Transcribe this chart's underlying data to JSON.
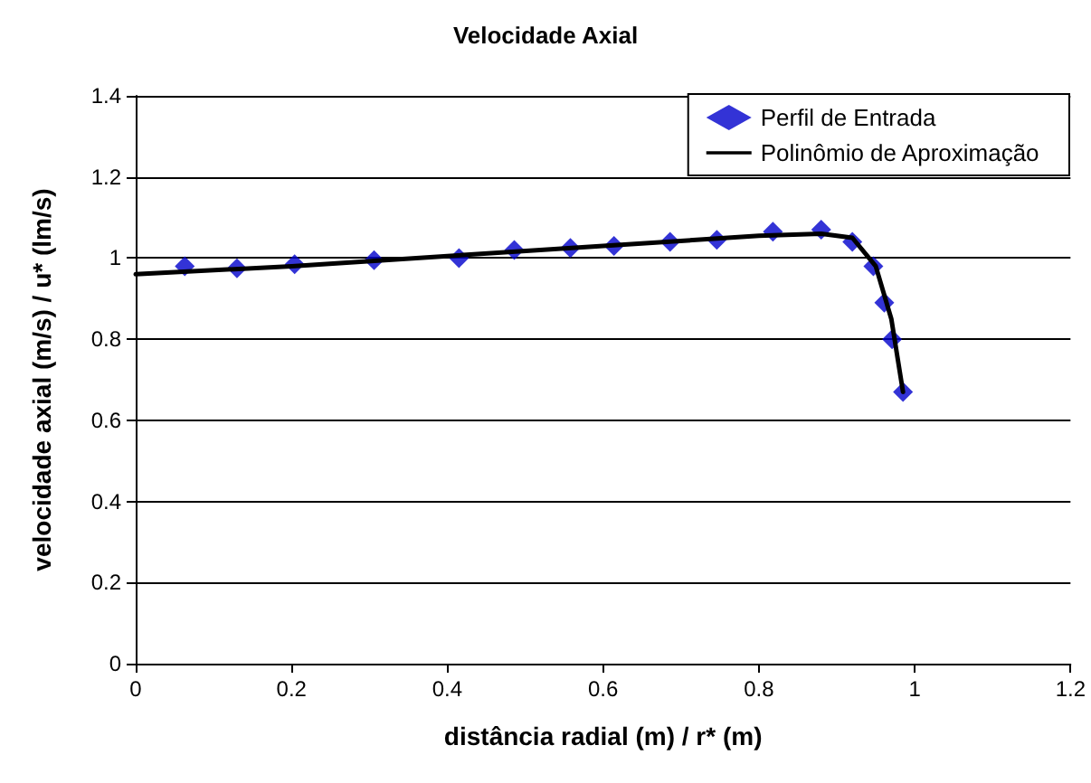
{
  "chart_data": {
    "type": "scatter",
    "title": "Velocidade Axial",
    "xlabel": "distância radial (m) / r* (m)",
    "ylabel": "velocidade axial (m/s) / u* (lm/s)",
    "xlim": [
      0,
      1.2
    ],
    "xticks": [
      0,
      0.2,
      0.4,
      0.6,
      0.8,
      1,
      1.2
    ],
    "ylim": [
      0,
      1.4
    ],
    "yticks": [
      0,
      0.2,
      0.4,
      0.6,
      0.8,
      1,
      1.2,
      1.4
    ],
    "grid": "y",
    "legend": "top right",
    "series": [
      {
        "name": "Perfil de Entrada",
        "marker": "diamond",
        "color": "#0000cc",
        "x": [
          0.063,
          0.13,
          0.204,
          0.306,
          0.415,
          0.486,
          0.558,
          0.614,
          0.686,
          0.746,
          0.818,
          0.88,
          0.92,
          0.947,
          0.961,
          0.971,
          0.985
        ],
        "values": [
          0.98,
          0.975,
          0.985,
          0.995,
          1.0,
          1.02,
          1.025,
          1.03,
          1.04,
          1.045,
          1.065,
          1.07,
          1.04,
          0.98,
          0.89,
          0.8,
          0.67
        ]
      },
      {
        "name": "Polinômio de Aproximação",
        "type": "line",
        "marker": "none",
        "line_style": "solid",
        "color": "#000000",
        "x": [
          0,
          0.2,
          0.4,
          0.6,
          0.8,
          0.88,
          0.92,
          0.95,
          0.97,
          0.985
        ],
        "values": [
          0.96,
          0.98,
          1.005,
          1.03,
          1.055,
          1.06,
          1.05,
          0.98,
          0.85,
          0.67
        ]
      }
    ]
  }
}
